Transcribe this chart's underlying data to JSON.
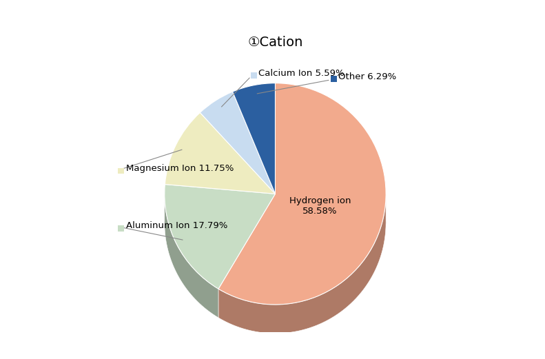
{
  "title": "①Cation",
  "label_names": [
    "Hydrogen ion",
    "Aluminum Ion",
    "Magnesium Ion",
    "Calcium Ion",
    "Other"
  ],
  "percentages": [
    58.58,
    17.79,
    11.75,
    5.59,
    6.29
  ],
  "colors": [
    "#F2AA8D",
    "#C8DDC5",
    "#EEECC0",
    "#C8DCF0",
    "#2B5FA0"
  ],
  "shadow_color": "#8B7060",
  "background_color": "#FFFFFF",
  "title_fontsize": 14,
  "label_fontsize": 9.5,
  "startangle": 90
}
